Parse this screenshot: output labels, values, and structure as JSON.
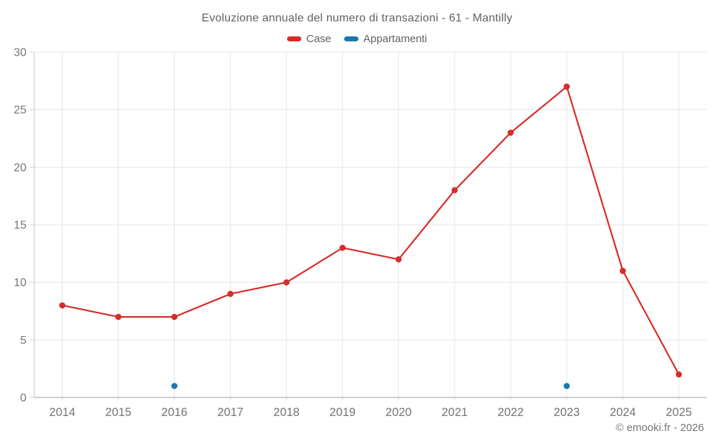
{
  "title": "Evoluzione annuale del numero di transazioni - 61 - Mantilly",
  "footer": "© emooki.fr - 2026",
  "colors": {
    "background": "#ffffff",
    "title_text": "#616161",
    "axis_label": "#757575",
    "grid_line": "#e6e6e6",
    "axis_line_left": "#c4c4c4",
    "axis_line_bottom": "#9e9e9e",
    "tick": "#cccccc",
    "case_red": "#d62c2a",
    "appartamenti_blue": "#1a77b0"
  },
  "chart_data": {
    "type": "line",
    "title": "Evoluzione annuale del numero di transazioni - 61 - Mantilly",
    "categories": [
      "2014",
      "2015",
      "2016",
      "2017",
      "2018",
      "2019",
      "2020",
      "2021",
      "2022",
      "2023",
      "2024",
      "2025"
    ],
    "series": [
      {
        "name": "Case",
        "color": "#d62c2a",
        "values": [
          8,
          7,
          7,
          9,
          10,
          13,
          12,
          18,
          23,
          27,
          11,
          2
        ]
      },
      {
        "name": "Appartamenti",
        "color": "#1a77b0",
        "values": [
          null,
          null,
          1,
          null,
          null,
          null,
          null,
          null,
          null,
          1,
          null,
          null
        ]
      }
    ],
    "xlabel": "",
    "ylabel": "",
    "ylim": [
      0,
      30
    ],
    "yticks": [
      0,
      5,
      10,
      15,
      20,
      25,
      30
    ],
    "grid": true,
    "legend_position": "top",
    "marker_radius": 4.3,
    "line_width": 2.2
  }
}
